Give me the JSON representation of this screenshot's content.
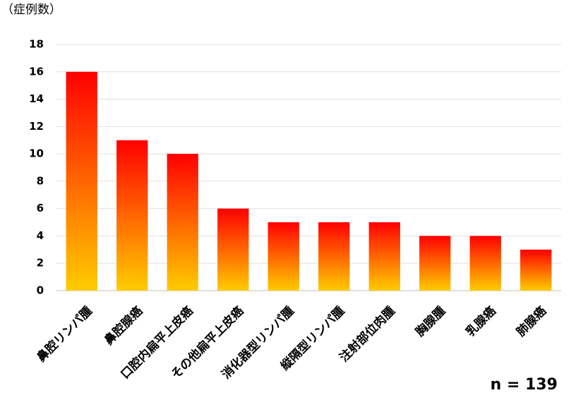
{
  "chart_data": {
    "type": "bar",
    "y_label": "（症例数）",
    "categories": [
      "鼻腔リンパ腫",
      "鼻腔腺癌",
      "口腔内扁平上皮癌",
      "その他扁平上皮癌",
      "消化器型リンパ腫",
      "縦隔型リンパ腫",
      "注射部位肉腫",
      "胸腺腫",
      "乳腺癌",
      "肺腺癌"
    ],
    "values": [
      16,
      11,
      10,
      6,
      5,
      5,
      5,
      4,
      4,
      3
    ],
    "gradient": [
      "#ff0000",
      "#ffcc00"
    ],
    "ylim": [
      0,
      18
    ],
    "yticks": [
      0,
      2,
      4,
      6,
      8,
      10,
      12,
      14,
      16,
      18
    ],
    "grid": true,
    "annotation": "n = 139"
  }
}
